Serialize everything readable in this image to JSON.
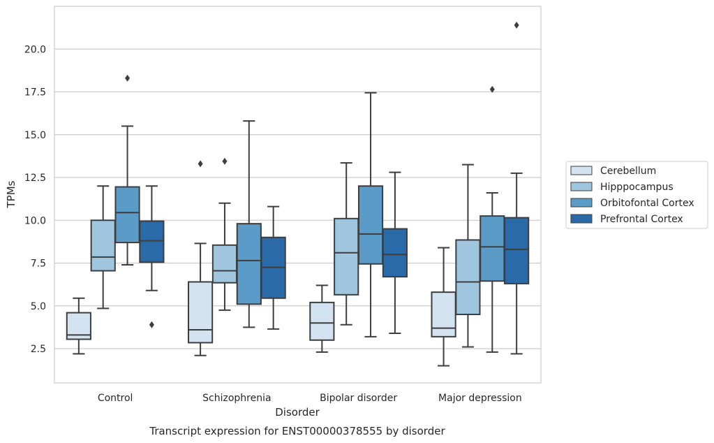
{
  "caption": "Transcript expression for ENST00000378555 by disorder",
  "chart_data": {
    "type": "box",
    "title": "",
    "xlabel": "Disorder",
    "ylabel": "TPMs",
    "ylim": [
      0.5,
      22.5
    ],
    "yticks": [
      2.5,
      5.0,
      7.5,
      10.0,
      12.5,
      15.0,
      17.5,
      20.0
    ],
    "ytick_labels": [
      "2.5",
      "5.0",
      "7.5",
      "10.0",
      "12.5",
      "15.0",
      "17.5",
      "20.0"
    ],
    "grid": "horizontal",
    "legend_position": "right",
    "categories": [
      "Control",
      "Schizophrenia",
      "Bipolar disorder",
      "Major depression"
    ],
    "series": [
      {
        "name": "Cerebellum",
        "color": "#d4e3f2",
        "boxes": [
          {
            "whislo": 2.2,
            "q1": 3.05,
            "med": 3.3,
            "q3": 4.6,
            "whishi": 5.45,
            "fliers": []
          },
          {
            "whislo": 2.1,
            "q1": 2.85,
            "med": 3.6,
            "q3": 6.4,
            "whishi": 8.65,
            "fliers": [
              13.3
            ]
          },
          {
            "whislo": 2.3,
            "q1": 3.0,
            "med": 4.0,
            "q3": 5.2,
            "whishi": 6.2,
            "fliers": []
          },
          {
            "whislo": 1.5,
            "q1": 3.2,
            "med": 3.7,
            "q3": 5.8,
            "whishi": 8.4,
            "fliers": []
          }
        ]
      },
      {
        "name": "Hipppocampus",
        "color": "#9fc5df",
        "boxes": [
          {
            "whislo": 4.85,
            "q1": 7.05,
            "med": 7.85,
            "q3": 10.0,
            "whishi": 12.0,
            "fliers": []
          },
          {
            "whislo": 4.75,
            "q1": 6.35,
            "med": 7.05,
            "q3": 8.55,
            "whishi": 11.0,
            "fliers": [
              13.45
            ]
          },
          {
            "whislo": 3.9,
            "q1": 5.65,
            "med": 8.1,
            "q3": 10.1,
            "whishi": 13.35,
            "fliers": []
          },
          {
            "whislo": 2.6,
            "q1": 4.5,
            "med": 6.4,
            "q3": 8.85,
            "whishi": 13.25,
            "fliers": []
          }
        ]
      },
      {
        "name": "Orbitofontal Cortex",
        "color": "#5b9bc8",
        "boxes": [
          {
            "whislo": 7.4,
            "q1": 8.7,
            "med": 10.45,
            "q3": 11.95,
            "whishi": 15.5,
            "fliers": [
              18.3
            ]
          },
          {
            "whislo": 3.75,
            "q1": 5.1,
            "med": 7.65,
            "q3": 9.8,
            "whishi": 15.8,
            "fliers": []
          },
          {
            "whislo": 3.2,
            "q1": 7.45,
            "med": 9.2,
            "q3": 12.0,
            "whishi": 17.45,
            "fliers": []
          },
          {
            "whislo": 2.3,
            "q1": 6.45,
            "med": 8.45,
            "q3": 10.25,
            "whishi": 11.6,
            "fliers": [
              17.65
            ]
          }
        ]
      },
      {
        "name": "Prefrontal Cortex",
        "color": "#2b6aa9",
        "boxes": [
          {
            "whislo": 5.9,
            "q1": 7.55,
            "med": 8.8,
            "q3": 9.95,
            "whishi": 12.0,
            "fliers": [
              3.9
            ]
          },
          {
            "whislo": 3.65,
            "q1": 5.45,
            "med": 7.25,
            "q3": 9.0,
            "whishi": 10.8,
            "fliers": []
          },
          {
            "whislo": 3.4,
            "q1": 6.7,
            "med": 8.0,
            "q3": 9.5,
            "whishi": 12.8,
            "fliers": []
          },
          {
            "whislo": 2.2,
            "q1": 6.3,
            "med": 8.3,
            "q3": 10.15,
            "whishi": 12.75,
            "fliers": [
              21.4
            ]
          }
        ]
      }
    ]
  }
}
